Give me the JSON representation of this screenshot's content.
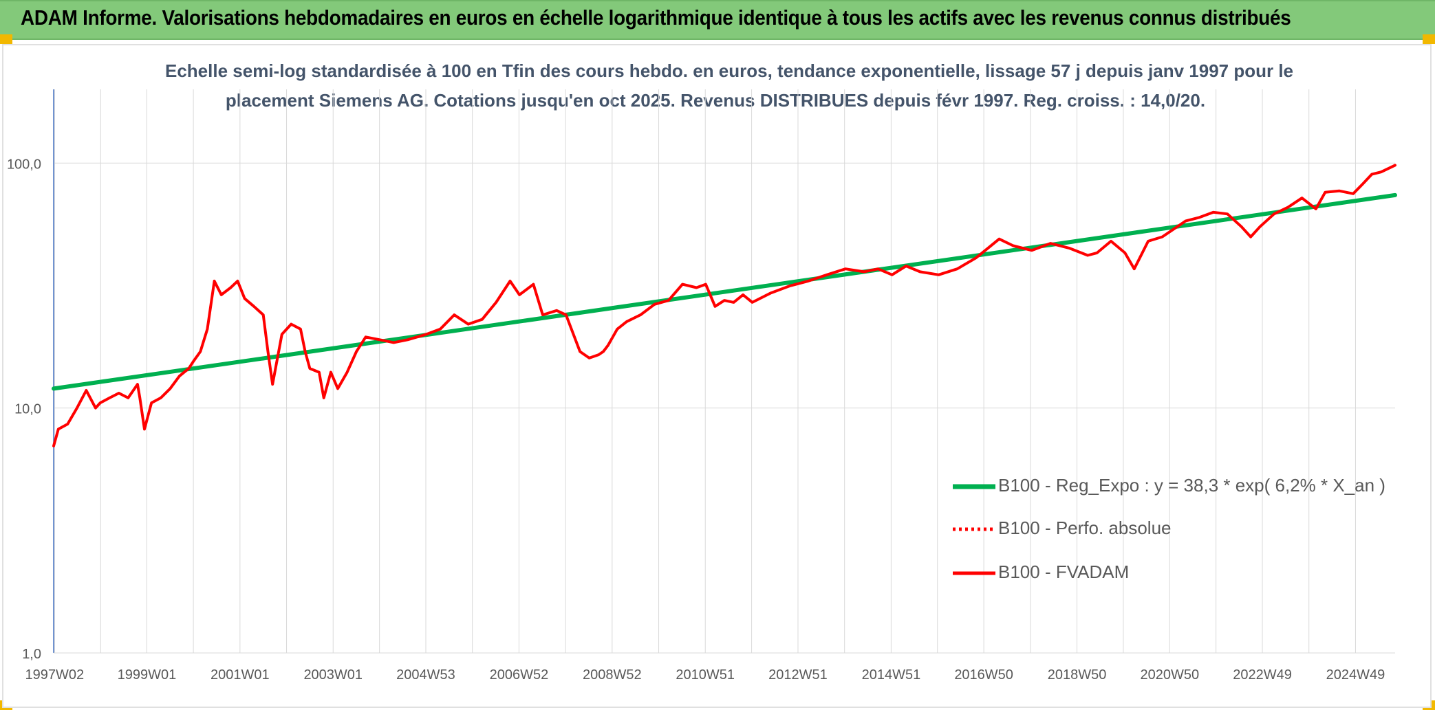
{
  "banner": {
    "title": "ADAM Informe. Valorisations hebdomadaires en euros en échelle logarithmique identique à tous les actifs avec les revenus connus distribués"
  },
  "chart_data": {
    "type": "line",
    "title_line1": "Echelle semi-log standardisée à 100 en Tfin des cours hebdo. en euros, tendance exponentielle, lissage 57 j depuis janv 1997 pour le",
    "title_line2": "placement Siemens AG. Cotations jusqu'en oct 2025. Revenus DISTRIBUES depuis févr 1997. Reg. croiss. : 14,0/20.",
    "y_scale": "log",
    "ylim": [
      1,
      200
    ],
    "y_ticks": [
      1,
      10,
      100
    ],
    "y_tick_labels": [
      "1,0",
      "10,0",
      "100,0"
    ],
    "xlim": [
      1997.0,
      2025.8
    ],
    "x_ticks": [
      1997.02,
      1999.0,
      2001.0,
      2003.0,
      2004.99,
      2006.99,
      2008.99,
      2010.99,
      2012.98,
      2014.98,
      2016.97,
      2018.97,
      2020.96,
      2022.95,
      2024.95
    ],
    "x_tick_labels": [
      "1997W02",
      "1999W01",
      "2001W01",
      "2003W01",
      "2004W53",
      "2006W52",
      "2008W52",
      "2010W51",
      "2012W51",
      "2014W51",
      "2016W50",
      "2018W50",
      "2020W50",
      "2022W49",
      "2024W49"
    ],
    "grid": true,
    "legend_position": "bottom-right",
    "series": [
      {
        "name": "B100 - Reg_Expo : y = 38,3 * exp( 6,2% *  X_an )",
        "color": "#00b050",
        "style": "solid",
        "x": [
          1997.0,
          2025.8
        ],
        "y": [
          12.0,
          74.0
        ]
      },
      {
        "name": "B100 - Perfo. absolue",
        "color": "#ff0000",
        "style": "dotted",
        "x": [],
        "y": []
      },
      {
        "name": "B100 - FVADAM",
        "color": "#ff0000",
        "style": "solid",
        "x": [
          1997.0,
          1997.1,
          1997.3,
          1997.5,
          1997.7,
          1997.9,
          1998.0,
          1998.2,
          1998.4,
          1998.6,
          1998.8,
          1998.85,
          1998.95,
          1999.1,
          1999.3,
          1999.5,
          1999.7,
          1999.9,
          2000.0,
          2000.15,
          2000.3,
          2000.45,
          2000.6,
          2000.8,
          2000.95,
          2001.1,
          2001.3,
          2001.5,
          2001.6,
          2001.7,
          2001.9,
          2002.1,
          2002.3,
          2002.4,
          2002.5,
          2002.7,
          2002.8,
          2002.95,
          2003.1,
          2003.3,
          2003.5,
          2003.7,
          2004.0,
          2004.3,
          2004.6,
          2005.0,
          2005.3,
          2005.6,
          2005.9,
          2006.2,
          2006.5,
          2006.8,
          2007.0,
          2007.3,
          2007.5,
          2007.8,
          2008.0,
          2008.3,
          2008.5,
          2008.7,
          2008.8,
          2008.9,
          2009.1,
          2009.3,
          2009.6,
          2009.9,
          2010.2,
          2010.5,
          2010.8,
          2011.0,
          2011.2,
          2011.4,
          2011.6,
          2011.8,
          2012.0,
          2012.4,
          2012.8,
          2013.2,
          2013.6,
          2014.0,
          2014.4,
          2014.7,
          2015.0,
          2015.3,
          2015.6,
          2016.0,
          2016.4,
          2016.8,
          2017.0,
          2017.3,
          2017.6,
          2018.0,
          2018.4,
          2018.8,
          2019.2,
          2019.4,
          2019.7,
          2020.0,
          2020.2,
          2020.5,
          2020.8,
          2021.0,
          2021.3,
          2021.6,
          2021.9,
          2022.2,
          2022.5,
          2022.7,
          2022.9,
          2023.2,
          2023.5,
          2023.8,
          2024.1,
          2024.3,
          2024.6,
          2024.9,
          2025.1,
          2025.3,
          2025.5,
          2025.8
        ],
        "y": [
          7.0,
          8.2,
          8.6,
          10.0,
          11.8,
          10.0,
          10.5,
          11.0,
          11.5,
          11.0,
          12.5,
          11.0,
          8.2,
          10.5,
          11.0,
          12.0,
          13.5,
          14.5,
          15.5,
          17.0,
          21.0,
          33.0,
          29.0,
          31.0,
          33.0,
          28.0,
          26.0,
          24.0,
          17.0,
          12.5,
          20.0,
          22.0,
          21.0,
          17.0,
          14.5,
          14.0,
          11.0,
          14.0,
          12.0,
          14.0,
          17.0,
          19.5,
          19.0,
          18.5,
          19.0,
          20.0,
          21.0,
          24.0,
          22.0,
          23.0,
          27.0,
          33.0,
          29.0,
          32.0,
          24.0,
          25.0,
          24.0,
          17.0,
          16.0,
          16.5,
          17.0,
          18.0,
          21.0,
          22.5,
          24.0,
          26.5,
          27.5,
          32.0,
          31.0,
          32.0,
          26.0,
          27.5,
          27.0,
          29.0,
          27.0,
          29.5,
          31.5,
          33.0,
          35.0,
          37.0,
          36.0,
          37.0,
          35.0,
          38.0,
          36.0,
          35.0,
          37.0,
          41.0,
          44.0,
          49.0,
          46.0,
          44.0,
          47.0,
          45.0,
          42.0,
          43.0,
          48.0,
          43.0,
          37.0,
          48.0,
          50.0,
          53.0,
          58.0,
          60.0,
          63.0,
          62.0,
          55.0,
          50.0,
          55.0,
          62.0,
          66.0,
          72.0,
          65.0,
          76.0,
          77.0,
          75.0,
          82.0,
          90.0,
          92.0,
          98.0
        ]
      }
    ]
  }
}
